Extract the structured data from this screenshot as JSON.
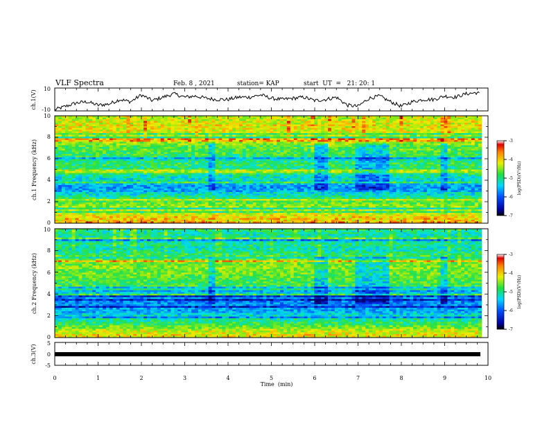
{
  "header": {
    "title": "VLF Spectra",
    "date": "Feb. 8 , 2021",
    "station": "station= KAP",
    "start": "start  UT  =   21: 20: 1"
  },
  "colors": {
    "spec_low": "#0000c8",
    "spec_mid": "#00e0ff",
    "spec_green": "#30e040",
    "spec_yellow": "#f0f000",
    "spec_high": "#e01010",
    "trace": "#000000",
    "background": "#ffffff"
  },
  "chart_data": [
    {
      "type": "line",
      "id": "ch1_waveform",
      "ylabel": "ch.1(V)",
      "ylim": [
        -10,
        10
      ],
      "yticks": [
        "10",
        "-10"
      ],
      "x_unit": "min",
      "x": [
        0,
        0.25,
        0.5,
        0.75,
        1.0,
        1.25,
        1.5,
        1.75,
        2.0,
        2.25,
        2.5,
        2.75,
        3.0,
        3.25,
        3.5,
        3.75,
        4.0,
        4.25,
        4.5,
        4.75,
        5.0,
        5.25,
        5.5,
        5.75,
        6.0,
        6.25,
        6.5,
        6.75,
        7.0,
        7.25,
        7.5,
        7.75,
        8.0,
        8.25,
        8.5,
        8.75,
        9.0,
        9.25,
        9.5,
        9.75,
        9.8
      ],
      "y": [
        -9,
        -6,
        -3,
        -2,
        -5,
        -4,
        0,
        -2,
        4,
        -1,
        2,
        5,
        2,
        3,
        1,
        0,
        0,
        2,
        2,
        4,
        1,
        0,
        1,
        2,
        -1,
        0,
        2,
        -5,
        -6,
        1,
        3,
        -2,
        -6,
        -2,
        0,
        0,
        3,
        2,
        5,
        6,
        5
      ]
    },
    {
      "type": "heatmap",
      "id": "ch1_spectrogram",
      "ylabel": "ch.1 Frequency (kHz)",
      "ylim": [
        0,
        10
      ],
      "yticks": [
        "0",
        "2",
        "4",
        "6",
        "8",
        "10"
      ],
      "colorbar": {
        "label": "log(PSD)(V²/Hz)",
        "range": [
          -7,
          -3
        ],
        "ticks": [
          "-3",
          "-4",
          "-5",
          "-6",
          "-7"
        ]
      },
      "freq_profile_khz": [
        0,
        1,
        2,
        3,
        3.5,
        4,
        5,
        6,
        7,
        8,
        9,
        10
      ],
      "log_psd_profile": [
        -3.6,
        -4.2,
        -4.6,
        -5.6,
        -5.7,
        -5.2,
        -4.8,
        -5.0,
        -4.6,
        -4.3,
        -4.0,
        -4.1
      ],
      "quiet_intervals_min": [
        [
          3.55,
          3.7
        ],
        [
          6.0,
          6.3
        ],
        [
          6.95,
          7.7
        ],
        [
          8.9,
          9.05
        ]
      ]
    },
    {
      "type": "heatmap",
      "id": "ch2_spectrogram",
      "ylabel": "ch.2 Frequency (kHz)",
      "ylim": [
        0,
        10
      ],
      "yticks": [
        "0",
        "2",
        "4",
        "6",
        "8",
        "10"
      ],
      "colorbar": {
        "label": "log(PSD)(V²/Hz)",
        "range": [
          -7,
          -3
        ],
        "ticks": [
          "-3",
          "-4",
          "-5",
          "-6",
          "-7"
        ]
      },
      "freq_profile_khz": [
        0,
        1,
        2,
        3,
        3.5,
        4,
        5,
        6,
        7,
        8,
        9,
        10
      ],
      "log_psd_profile": [
        -3.8,
        -4.5,
        -5.3,
        -5.9,
        -6.0,
        -5.4,
        -4.6,
        -4.5,
        -4.4,
        -5.0,
        -5.2,
        -5.0
      ],
      "quiet_intervals_min": [
        [
          3.55,
          3.7
        ],
        [
          6.0,
          6.3
        ],
        [
          6.95,
          7.7
        ],
        [
          8.9,
          9.05
        ]
      ]
    },
    {
      "type": "line",
      "id": "ch3_waveform",
      "ylabel": "ch.3(V)",
      "ylim": [
        -5,
        5
      ],
      "yticks": [
        "5",
        "0",
        "-5"
      ],
      "x": [
        0,
        9.8
      ],
      "y": [
        0,
        0
      ]
    }
  ],
  "xaxis": {
    "label": "Time  (min)",
    "range": [
      0,
      10
    ],
    "ticks": [
      "0",
      "1",
      "2",
      "3",
      "4",
      "5",
      "6",
      "7",
      "8",
      "9",
      "10"
    ]
  }
}
